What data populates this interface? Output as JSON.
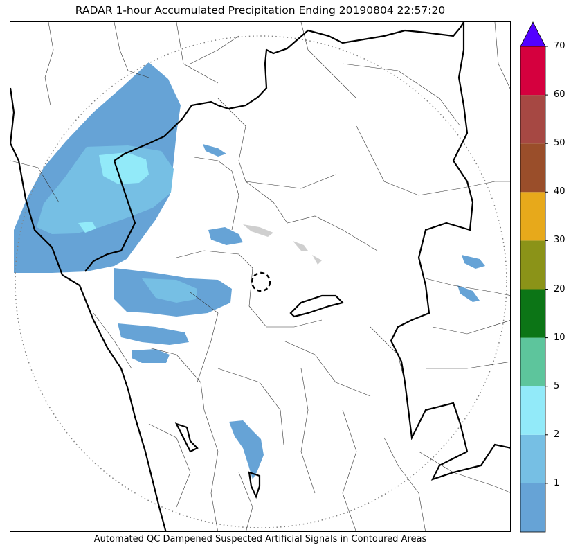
{
  "title": "RADAR 1-hour Accumulated Precipitation Ending 20190804 22:57:20",
  "footer": "Automated QC Dampened Suspected Artificial Signals in Contoured Areas",
  "colorbar": {
    "extend": "max",
    "extend_color": "#5200ff",
    "bins": [
      {
        "label": "",
        "color": "#66a3d6"
      },
      {
        "label": "1",
        "color": "#76bfe4"
      },
      {
        "label": "2",
        "color": "#92eaf9"
      },
      {
        "label": "5",
        "color": "#5dc59c"
      },
      {
        "label": "10",
        "color": "#0c7516"
      },
      {
        "label": "20",
        "color": "#8b9318"
      },
      {
        "label": "30",
        "color": "#e7a91b"
      },
      {
        "label": "40",
        "color": "#9a4e2a"
      },
      {
        "label": "50",
        "color": "#a64843"
      },
      {
        "label": "60",
        "color": "#d5003e"
      },
      {
        "label": "70",
        "color": ""
      }
    ]
  },
  "map": {
    "radar_range_ring": "dotted-grey",
    "radar_site_marker": "dashed-circle",
    "boundary_color_state": "#000000",
    "boundary_color_district": "#333333"
  }
}
